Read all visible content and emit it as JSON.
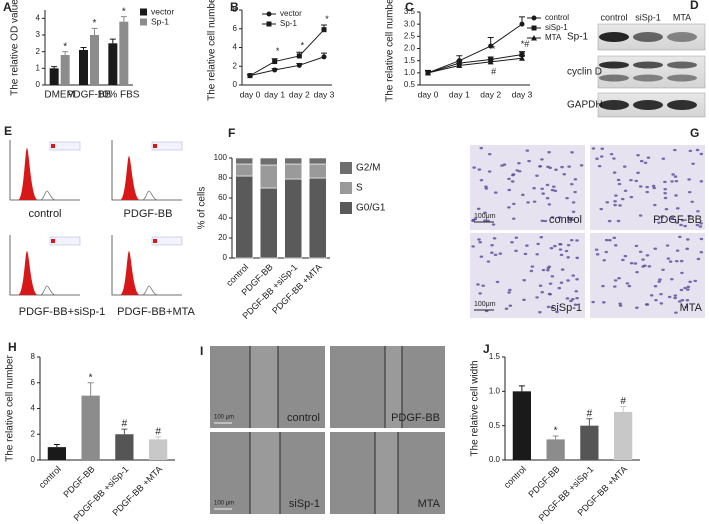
{
  "chart_data": [
    {
      "type": "bar",
      "panel": "A",
      "ylabel": "The relative OD value",
      "categories": [
        "DMEM",
        "PDGF-BB",
        "10% FBS"
      ],
      "series": [
        {
          "name": "vector",
          "color": "#1a1a1a",
          "values": [
            1.0,
            2.1,
            2.5
          ],
          "errors": [
            0.1,
            0.15,
            0.25
          ]
        },
        {
          "name": "Sp-1",
          "color": "#8c8c8c",
          "values": [
            1.8,
            3.0,
            3.8
          ],
          "errors": [
            0.2,
            0.4,
            0.3
          ],
          "annotations": [
            "*",
            "*",
            "*"
          ]
        }
      ],
      "ylim": [
        0,
        4.5
      ],
      "yticks": [
        0,
        1,
        2,
        3,
        4
      ]
    },
    {
      "type": "line",
      "panel": "B",
      "ylabel": "The relative cell number",
      "categories": [
        "day 0",
        "day 1",
        "day 2",
        "day 3"
      ],
      "series": [
        {
          "name": "vector",
          "color": "#1a1a1a",
          "marker": "circle",
          "values": [
            1.0,
            1.6,
            2.1,
            3.0
          ],
          "errors": [
            0.1,
            0.15,
            0.2,
            0.4
          ]
        },
        {
          "name": "Sp-1",
          "color": "#1a1a1a",
          "marker": "square",
          "values": [
            1.0,
            2.5,
            3.1,
            5.9
          ],
          "errors": [
            0.1,
            0.3,
            0.4,
            0.5
          ],
          "annotations": [
            null,
            "*",
            "*",
            "*"
          ]
        }
      ],
      "ylim": [
        0,
        8
      ],
      "yticks": [
        0,
        2,
        4,
        6,
        8
      ]
    },
    {
      "type": "line",
      "panel": "C",
      "ylabel": "The relative cell number",
      "categories": [
        "day 0",
        "day 1",
        "day 2",
        "day 3"
      ],
      "series": [
        {
          "name": "control",
          "color": "#1a1a1a",
          "marker": "circle",
          "values": [
            1.0,
            1.5,
            2.1,
            3.0
          ],
          "errors": [
            0.1,
            0.2,
            0.35,
            0.3
          ]
        },
        {
          "name": "siSp-1",
          "color": "#1a1a1a",
          "marker": "square",
          "values": [
            1.0,
            1.4,
            1.55,
            1.75
          ],
          "errors": [
            0.08,
            0.1,
            0.1,
            0.12
          ],
          "annotations": [
            null,
            null,
            "*",
            "*#"
          ]
        },
        {
          "name": "MTA",
          "color": "#1a1a1a",
          "marker": "triangle",
          "values": [
            1.0,
            1.3,
            1.45,
            1.6
          ],
          "errors": [
            0.08,
            0.1,
            0.1,
            0.1
          ],
          "annotations": [
            null,
            null,
            "#",
            null
          ]
        }
      ],
      "ylim": [
        0.5,
        3.5
      ],
      "yticks": [
        0.5,
        {
          "value": 1,
          "label": "1.0"
        },
        1.5,
        {
          "value": 2,
          "label": "2.0"
        },
        2.5,
        {
          "value": 3,
          "label": "3.0"
        },
        3.5
      ]
    },
    {
      "type": "stacked_bar",
      "panel": "F",
      "ylabel": "% of cells",
      "categories": [
        "control",
        "PDGF-BB",
        "PDGF-BB +siSp-1",
        "PDGF-BB +MTA"
      ],
      "series": [
        {
          "name": "G0/G1",
          "color": "#5a5a5a",
          "values": [
            82,
            70,
            79,
            80
          ]
        },
        {
          "name": "S",
          "color": "#9a9a9a",
          "values": [
            12,
            23,
            15,
            14
          ]
        },
        {
          "name": "G2/M",
          "color": "#6e6e6e",
          "values": [
            6,
            7,
            6,
            6
          ]
        }
      ],
      "ylim": [
        0,
        100
      ],
      "yticks": [
        0,
        20,
        40,
        60,
        80,
        100
      ]
    },
    {
      "type": "bar",
      "panel": "H",
      "ylabel": "The relative cell number",
      "categories": [
        "control",
        "PDGF-BB",
        "PDGF-BB +siSp-1",
        "PDGF-BB +MTA"
      ],
      "series": [
        {
          "colors": [
            "#1a1a1a",
            "#8c8c8c",
            "#555555",
            "#c8c8c8"
          ],
          "values": [
            1.0,
            5.0,
            2.0,
            1.6
          ],
          "errors": [
            0.2,
            1.0,
            0.4,
            0.2
          ],
          "annotations": [
            null,
            "*",
            "#",
            "#"
          ]
        }
      ],
      "ylim": [
        0,
        8
      ],
      "yticks": [
        0,
        2,
        4,
        6,
        8
      ]
    },
    {
      "type": "bar",
      "panel": "J",
      "ylabel": "The relative cell width",
      "categories": [
        "control",
        "PDGF-BB",
        "PDGF-BB +siSp-1",
        "PDGF-BB +MTA"
      ],
      "series": [
        {
          "colors": [
            "#1a1a1a",
            "#8c8c8c",
            "#555555",
            "#c8c8c8"
          ],
          "values": [
            1.0,
            0.3,
            0.5,
            0.7
          ],
          "errors": [
            0.08,
            0.05,
            0.1,
            0.08
          ],
          "annotations": [
            null,
            "*",
            "#",
            "#"
          ]
        }
      ],
      "ylim": [
        0,
        1.5
      ],
      "yticks": [
        {
          "value": 0,
          "label": "0.0"
        },
        0.5,
        {
          "value": 1,
          "label": "1.0"
        },
        1.5
      ]
    }
  ],
  "images": [
    {
      "panel": "D",
      "columns": [
        "control",
        "siSp-1",
        "MTA"
      ],
      "rows": [
        "Sp-1",
        "cyclin D",
        "GAPDH"
      ]
    },
    {
      "panel": "E",
      "labels": [
        "control",
        "PDGF-BB",
        "PDGF-BB+siSp-1",
        "PDGF-BB+MTA"
      ]
    },
    {
      "panel": "G",
      "labels": [
        "control",
        "PDGF-BB",
        "siSp-1",
        "MTA"
      ],
      "scale_bar": "100μm"
    },
    {
      "panel": "I",
      "labels": [
        "control",
        "PDGF-BB",
        "siSp-1",
        "MTA"
      ],
      "scale_bar": "100 μm"
    }
  ]
}
